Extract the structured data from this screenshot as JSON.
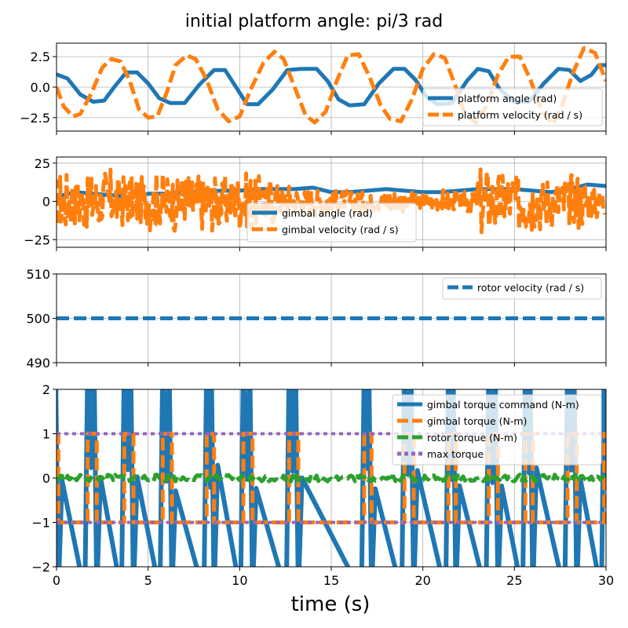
{
  "figure": {
    "title": "initial platform angle: pi/3 rad",
    "xlabel": "time (s)"
  },
  "chart_data": [
    {
      "type": "line",
      "panel": "platform",
      "xlim": [
        0,
        30
      ],
      "ylim": [
        -3.6,
        3.6
      ],
      "yticks": [
        "2.5",
        "0.0",
        "−2.5"
      ],
      "ytick_values": [
        2.5,
        0,
        -2.5
      ],
      "xticks": [
        0,
        5,
        10,
        15,
        20,
        25,
        30
      ],
      "legend_position": "lower-right",
      "series": [
        {
          "name": "platform angle (rad)",
          "color": "#1f77b4",
          "style": "solid",
          "x": [
            0,
            0.6,
            1.3,
            2.0,
            2.6,
            3.2,
            3.8,
            4.4,
            5.0,
            5.6,
            6.2,
            7.0,
            7.8,
            8.6,
            9.2,
            9.8,
            10.4,
            11.0,
            11.8,
            12.6,
            13.4,
            14.2,
            14.8,
            15.4,
            16.0,
            16.8,
            17.6,
            18.4,
            19.0,
            19.6,
            20.2,
            20.8,
            21.6,
            22.4,
            23.0,
            23.6,
            24.2,
            25.0,
            25.8,
            26.6,
            27.4,
            28.0,
            28.6,
            29.2,
            29.6,
            30
          ],
          "y": [
            1.05,
            0.7,
            -0.6,
            -1.2,
            -1.1,
            0.1,
            1.2,
            1.2,
            0.3,
            -0.9,
            -1.3,
            -1.3,
            0.2,
            1.4,
            1.4,
            0.0,
            -1.4,
            -1.4,
            -0.2,
            1.4,
            1.5,
            1.5,
            0.5,
            -1.0,
            -1.5,
            -1.4,
            0.3,
            1.5,
            1.5,
            0.6,
            -0.8,
            -1.4,
            -1.3,
            0.5,
            1.5,
            1.3,
            -0.2,
            -1.2,
            -1.2,
            0.3,
            1.5,
            1.4,
            0.5,
            1.0,
            1.8,
            1.8
          ]
        },
        {
          "name": "platform velocity (rad / s)",
          "color": "#ff7f0e",
          "style": "dashed",
          "x": [
            0,
            0.4,
            0.9,
            1.3,
            1.9,
            2.5,
            3.0,
            3.5,
            4.0,
            4.5,
            5.0,
            5.5,
            6.0,
            6.5,
            7.1,
            7.6,
            8.2,
            8.8,
            9.4,
            10.0,
            10.6,
            11.3,
            11.9,
            12.4,
            13.0,
            13.6,
            14.1,
            14.7,
            15.3,
            15.9,
            16.5,
            17.1,
            17.7,
            18.2,
            18.8,
            19.4,
            20.0,
            20.6,
            21.2,
            21.8,
            22.3,
            22.9,
            23.5,
            24.1,
            24.7,
            25.3,
            25.9,
            26.5,
            27.1,
            27.6,
            28.2,
            28.8,
            29.4,
            30
          ],
          "y": [
            0.0,
            -1.6,
            -2.4,
            -2.2,
            -0.5,
            1.6,
            2.3,
            2.1,
            0.5,
            -1.8,
            -2.5,
            -2.4,
            -0.5,
            1.8,
            2.6,
            2.3,
            0.6,
            -1.8,
            -2.8,
            -2.4,
            -0.2,
            2.0,
            2.9,
            2.3,
            0.0,
            -2.3,
            -2.9,
            -2.0,
            0.5,
            2.6,
            2.7,
            0.8,
            -1.5,
            -2.6,
            -2.8,
            -1.0,
            1.5,
            2.7,
            2.4,
            0.0,
            -2.2,
            -2.9,
            -1.5,
            1.0,
            2.5,
            2.5,
            0.5,
            -2.0,
            -3.0,
            -1.5,
            1.2,
            3.2,
            2.8,
            0.5
          ]
        }
      ]
    },
    {
      "type": "line",
      "panel": "gimbal",
      "xlim": [
        0,
        30
      ],
      "ylim": [
        -30,
        29
      ],
      "yticks": [
        "25",
        "0",
        "−25"
      ],
      "ytick_values": [
        25,
        0,
        -25
      ],
      "xticks": [
        0,
        5,
        10,
        15,
        20,
        25,
        30
      ],
      "legend_position": "lower-center",
      "series": [
        {
          "name": "gimbal angle (rad)",
          "color": "#1f77b4",
          "style": "solid",
          "x": [
            0,
            1,
            2,
            3,
            4,
            5,
            6,
            7,
            8,
            9,
            10,
            11,
            12,
            13,
            14,
            15,
            16,
            17,
            18,
            19,
            20,
            21,
            22,
            23,
            24,
            25,
            26,
            27,
            28,
            29,
            30
          ],
          "y": [
            3,
            6,
            5,
            4,
            3,
            5,
            5,
            6,
            6,
            7,
            7,
            8,
            8,
            8,
            9,
            6,
            6,
            7,
            8,
            7,
            6,
            6,
            7,
            8,
            8,
            8,
            7,
            6,
            8,
            11,
            10
          ]
        },
        {
          "name": "gimbal velocity (rad / s)",
          "color": "#ff7f0e",
          "style": "dashed",
          "amplitude_by_second": [
            20,
            20,
            22,
            18,
            18,
            20,
            20,
            22,
            20,
            18,
            20,
            18,
            12,
            10,
            10,
            8,
            8,
            6,
            10,
            6,
            6,
            8,
            8,
            24,
            22,
            22,
            20,
            18,
            20,
            12,
            10
          ]
        }
      ]
    },
    {
      "type": "line",
      "panel": "rotor",
      "xlim": [
        0,
        30
      ],
      "ylim": [
        490,
        510
      ],
      "yticks": [
        "510",
        "500",
        "490"
      ],
      "ytick_values": [
        510,
        500,
        490
      ],
      "xticks": [
        0,
        5,
        10,
        15,
        20,
        25,
        30
      ],
      "legend_position": "top-right",
      "series": [
        {
          "name": "rotor velocity (rad / s)",
          "color": "#1f77b4",
          "style": "dashed",
          "x": [
            0,
            30
          ],
          "y": [
            500,
            500
          ]
        }
      ]
    },
    {
      "type": "line",
      "panel": "torque",
      "xlim": [
        0,
        30
      ],
      "ylim": [
        -2,
        2
      ],
      "yticks": [
        "2",
        "1",
        "0",
        "−1",
        "−2"
      ],
      "ytick_values": [
        2,
        1,
        0,
        -1,
        -2
      ],
      "xticks": [
        0,
        5,
        10,
        15,
        20,
        25,
        30
      ],
      "xtick_labels": [
        "0",
        "5",
        "10",
        "15",
        "20",
        "25",
        "30"
      ],
      "legend_position": "top-right",
      "switch_times": [
        0.1,
        1.7,
        2.2,
        3.7,
        4.2,
        5.8,
        6.3,
        8.2,
        8.6,
        10.2,
        10.7,
        12.7,
        13.2,
        16.8,
        17.2,
        19.0,
        19.5,
        21.4,
        21.8,
        23.6,
        24.1,
        25.6,
        26.0,
        27.9,
        28.4,
        29.9
      ],
      "series": [
        {
          "name": "gimbal torque command (N-m)",
          "color": "#1f77b4",
          "style": "solid"
        },
        {
          "name": "gimbal torque (N-m)",
          "color": "#ff7f0e",
          "style": "dashed",
          "levels": [
            1,
            -1
          ]
        },
        {
          "name": "rotor torque (N-m)",
          "color": "#2ca02c",
          "style": "dashed",
          "noise_level": 0.08
        },
        {
          "name": "max torque",
          "color": "#9467bd",
          "style": "dotted",
          "levels": [
            1,
            -1
          ]
        }
      ]
    }
  ]
}
